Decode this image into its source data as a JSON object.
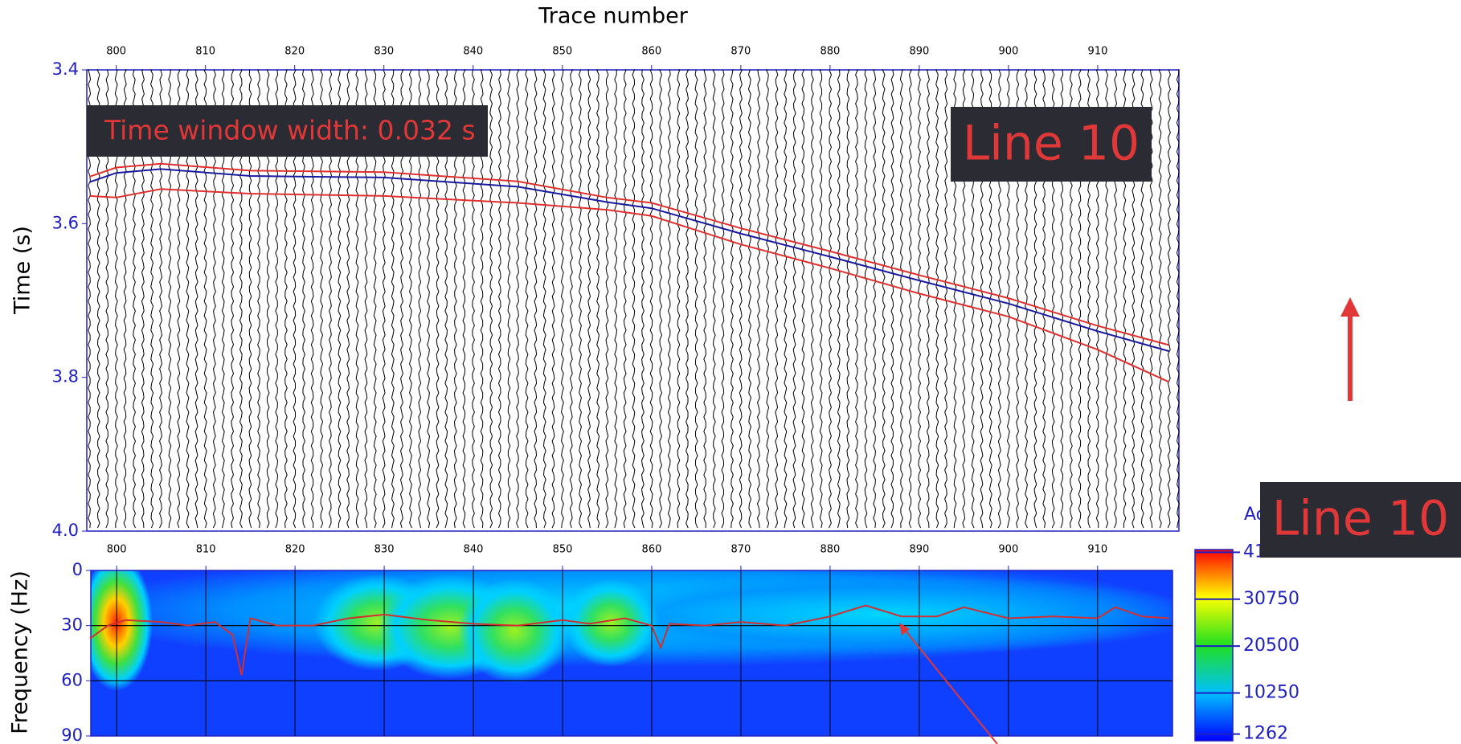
{
  "chart_data": [
    {
      "type": "seismic",
      "xlabel": "Trace number",
      "ylabel": "Time (s)",
      "xlim": [
        796.7,
        919.1
      ],
      "xticks": [
        800,
        810,
        820,
        830,
        840,
        850,
        860,
        870,
        880,
        890,
        900,
        910
      ],
      "ylim": [
        3.4,
        4.0
      ],
      "yticks": [
        3.4,
        3.6,
        3.8,
        {
          "value": 4.0,
          "label": "4.0"
        }
      ],
      "x": [
        797,
        800,
        805,
        815,
        830,
        845,
        855,
        860,
        870,
        880,
        890,
        900,
        910,
        918
      ],
      "series": [
        {
          "color": "#e03030",
          "values": [
            3.539,
            3.527,
            3.522,
            3.531,
            3.533,
            3.545,
            3.566,
            3.573,
            3.606,
            3.636,
            3.667,
            3.697,
            3.733,
            3.758
          ]
        },
        {
          "color": "#1a1aa0",
          "values": [
            3.546,
            3.534,
            3.529,
            3.538,
            3.54,
            3.552,
            3.572,
            3.58,
            3.613,
            3.643,
            3.674,
            3.704,
            3.74,
            3.766
          ]
        },
        {
          "color": "#e03030",
          "values": [
            3.564,
            3.566,
            3.555,
            3.561,
            3.564,
            3.573,
            3.582,
            3.59,
            3.627,
            3.658,
            3.691,
            3.721,
            3.764,
            3.806
          ]
        }
      ],
      "annotations": [
        "Time window width: 0.032 s",
        "Line 10"
      ]
    },
    {
      "type": "spectrogram",
      "ylabel": "Frequency (Hz)",
      "xlim": [
        797.1,
        918.4
      ],
      "xticks": [
        800,
        810,
        820,
        830,
        840,
        850,
        860,
        870,
        880,
        890,
        900,
        910
      ],
      "ylim": [
        0,
        90
      ],
      "yticks": [
        0,
        30,
        60,
        90
      ],
      "x": [
        797,
        799,
        801,
        805,
        808,
        811,
        813,
        814,
        815,
        818,
        822,
        826,
        830,
        835,
        840,
        845,
        850,
        853,
        857,
        860,
        861,
        862,
        866,
        870,
        875,
        880,
        884,
        888,
        892,
        895,
        900,
        905,
        910,
        912,
        915,
        918
      ],
      "series": [
        {
          "color": "#d03030",
          "values": [
            37,
            30,
            27,
            28,
            30,
            28,
            35,
            57,
            26,
            30,
            30,
            26,
            24,
            27,
            29,
            30,
            27,
            29,
            26,
            30,
            42,
            29,
            30,
            28,
            30,
            25,
            19,
            25,
            25,
            20,
            26,
            25,
            26,
            20,
            25,
            26
          ]
        }
      ],
      "colorbar": {
        "label": "Ac",
        "clim": [
          -200,
          41600
        ],
        "ticks": [
          1262,
          10250,
          20500,
          30750,
          41000
        ]
      },
      "annotations": [
        "Line 10"
      ]
    }
  ]
}
